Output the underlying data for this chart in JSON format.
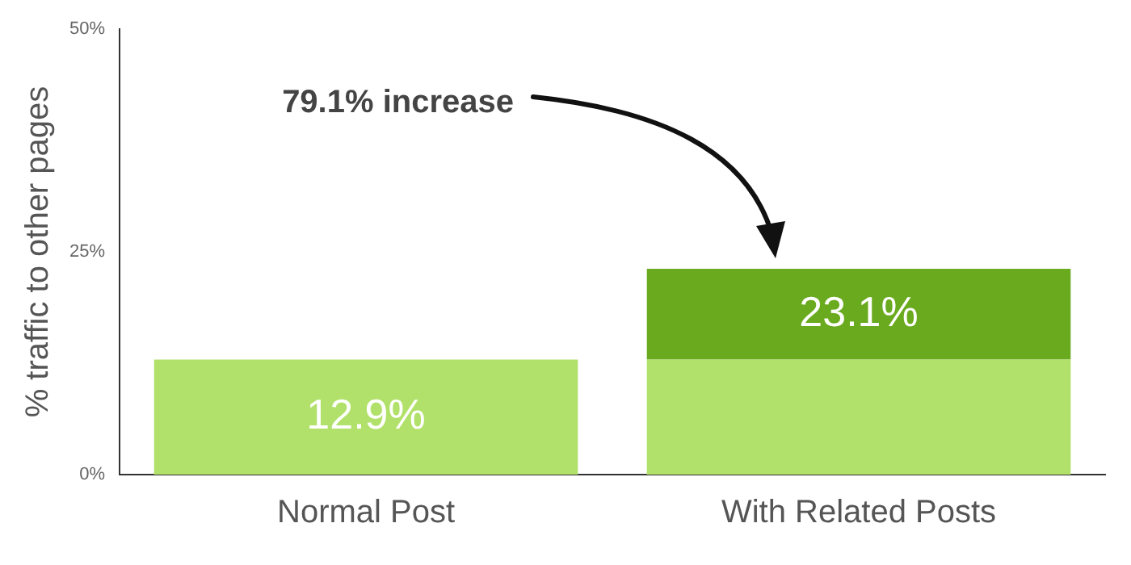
{
  "chart_data": {
    "type": "bar",
    "stacked": true,
    "ylabel": "% traffic to other pages",
    "categories": [
      "Normal Post",
      "With Related Posts"
    ],
    "series": [
      {
        "color": "#b1e16a",
        "values": [
          12.9,
          12.9
        ],
        "value_labels": [
          "12.9%",
          null
        ]
      },
      {
        "color": "#6aaa1e",
        "values": [
          null,
          10.2
        ]
      }
    ],
    "totals": [
      null,
      "23.1%"
    ],
    "ylim": [
      0,
      50
    ],
    "yticks": [
      {
        "value": 0,
        "label": "0%"
      },
      {
        "value": 25,
        "label": "25%"
      },
      {
        "value": 50,
        "label": "50%"
      }
    ],
    "grid": false,
    "legend": false,
    "annotations": [
      "79.1% increase"
    ]
  }
}
